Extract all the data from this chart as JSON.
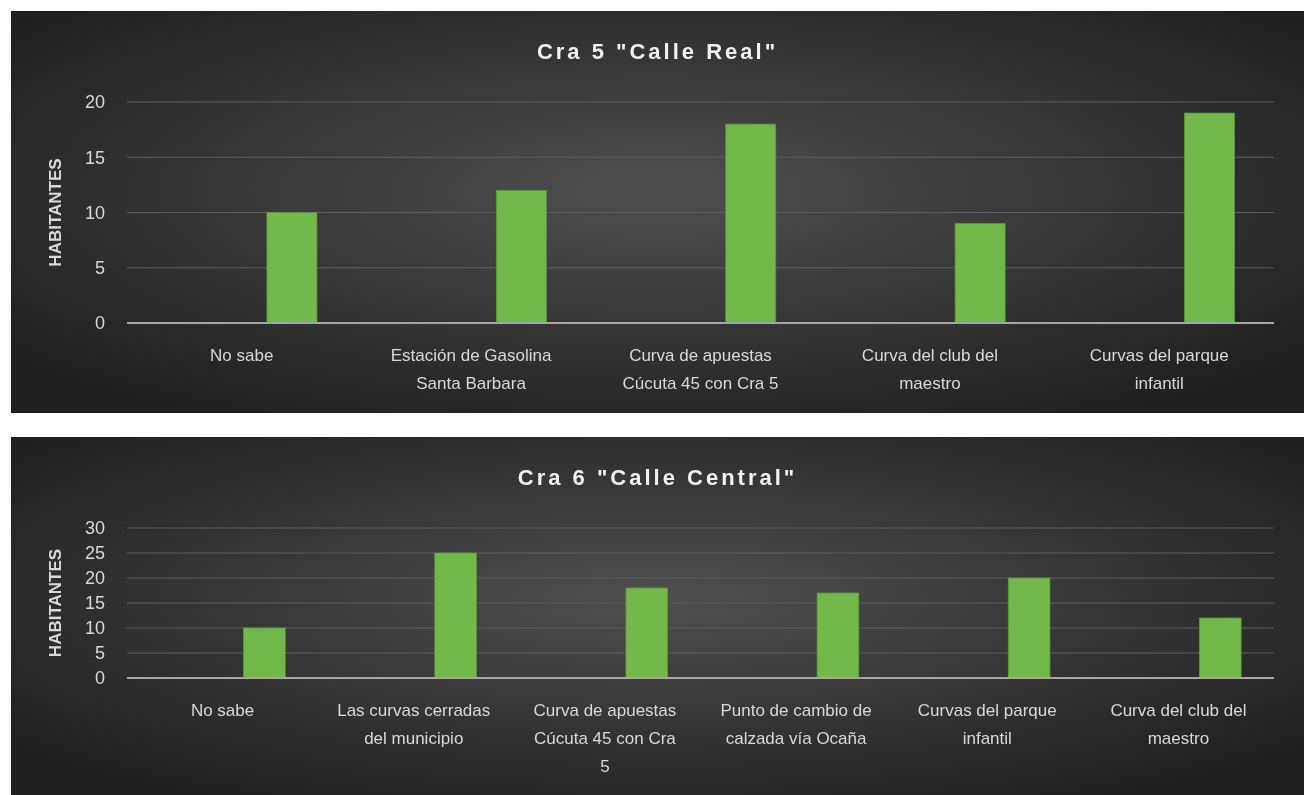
{
  "chart_data": [
    {
      "type": "bar",
      "title": "Cra 5 \"Calle Real\"",
      "ylabel": "HABITANTES",
      "categories": [
        "No sabe",
        "Estación de Gasolina Santa Barbara",
        "Curva de apuestas Cúcuta 45 con Cra 5",
        "Curva del club del maestro",
        "Curvas del parque infantil"
      ],
      "values": [
        10,
        12,
        18,
        9,
        19
      ],
      "color": "#72b84a",
      "ylim": [
        0,
        20
      ],
      "yticks": [
        0,
        5,
        10,
        15,
        20
      ],
      "grid": "y"
    },
    {
      "type": "bar",
      "title": "Cra 6 \"Calle Central\"",
      "ylabel": "HABITANTES",
      "categories": [
        "No sabe",
        "Las curvas cerradas del municipio",
        "Curva de apuestas Cúcuta 45 con Cra 5",
        "Punto de cambio de calzada vía Ocaña",
        "Curvas del parque infantil",
        "Curva del club del maestro"
      ],
      "values": [
        10,
        25,
        18,
        17,
        20,
        12
      ],
      "color": "#72b84a",
      "ylim": [
        0,
        30
      ],
      "yticks": [
        0,
        5,
        10,
        15,
        20,
        25,
        30
      ],
      "grid": "y"
    }
  ]
}
